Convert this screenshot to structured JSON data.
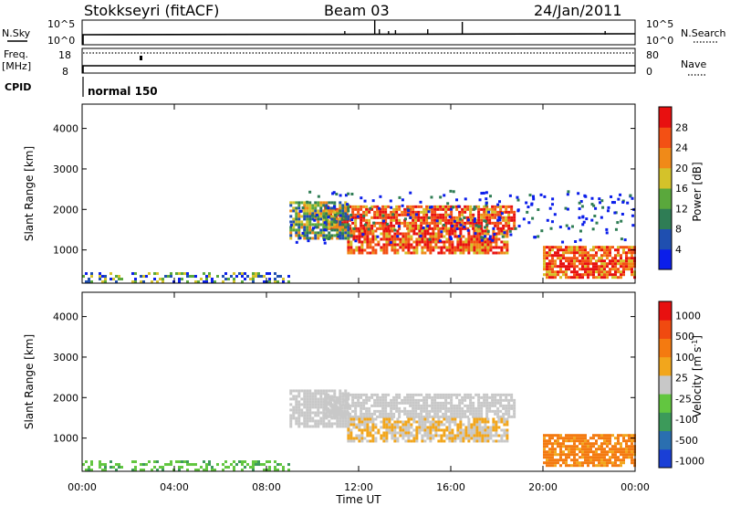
{
  "header": {
    "station": "Stokkseyri (fitACF)",
    "beam": "Beam 03",
    "date": "24/Jan/2011"
  },
  "panels": {
    "nsky": {
      "left_label": "N.Sky",
      "tick_top": "10^5",
      "tick_bottom": "10^0",
      "right_label": "N.Search",
      "right_tick_top": "10^5",
      "right_tick_bottom": "10^0"
    },
    "freq": {
      "left_label": "Freq.",
      "left_unit": "[MHz]",
      "tick_top": "18",
      "tick_bottom": "8",
      "right_label": "Nave",
      "right_tick_top": "80",
      "right_tick_bottom": "0"
    },
    "cpid": {
      "label": "CPID",
      "value": "normal 150"
    }
  },
  "chart_data": [
    {
      "type": "heatmap",
      "name": "power",
      "ylabel": "Slant Range [km]",
      "yticks": [
        1000,
        2000,
        3000,
        4000
      ],
      "ylim": [
        180,
        4600
      ],
      "colorbar": {
        "label": "Power [dB]",
        "ticks": [
          "4",
          "8",
          "12",
          "16",
          "20",
          "24",
          "28"
        ],
        "colors": [
          "#0b1eea",
          "#1f4fb0",
          "#2f7d55",
          "#5aa83c",
          "#d4c22a",
          "#f08a18",
          "#f35014",
          "#e81010"
        ]
      },
      "regions": [
        {
          "t": [
            10.5,
            18.8
          ],
          "r": [
            1500,
            2100
          ],
          "level": "high"
        },
        {
          "t": [
            11.5,
            18.5
          ],
          "r": [
            900,
            1500
          ],
          "level": "high"
        },
        {
          "t": [
            20.0,
            24.0
          ],
          "r": [
            300,
            1100
          ],
          "level": "high"
        },
        {
          "t": [
            9.0,
            11.5
          ],
          "r": [
            1300,
            2200
          ],
          "level": "mid"
        },
        {
          "t": [
            0.0,
            9.0
          ],
          "r": [
            180,
            450
          ],
          "level": "low"
        }
      ]
    },
    {
      "type": "heatmap",
      "name": "velocity",
      "ylabel": "Slant Range [km]",
      "xlabel": "Time UT",
      "xticks": [
        "00:00",
        "04:00",
        "08:00",
        "12:00",
        "16:00",
        "20:00",
        "00:00"
      ],
      "yticks": [
        1000,
        2000,
        3000,
        4000
      ],
      "ylim": [
        180,
        4600
      ],
      "colorbar": {
        "label": "Velocity [m s^-1]",
        "ticks": [
          "1000",
          "500",
          "100",
          "25",
          "-25",
          "-100",
          "-500",
          "-1000"
        ],
        "colors": [
          "#1a3fd6",
          "#2a6fb0",
          "#3c9a5a",
          "#62c640",
          "#c8c8c8",
          "#f2a61c",
          "#f47a10",
          "#f04a10",
          "#e81010"
        ]
      }
    }
  ],
  "colors": {
    "axis": "#000000",
    "ground_scatter": "#c8c8c8"
  }
}
